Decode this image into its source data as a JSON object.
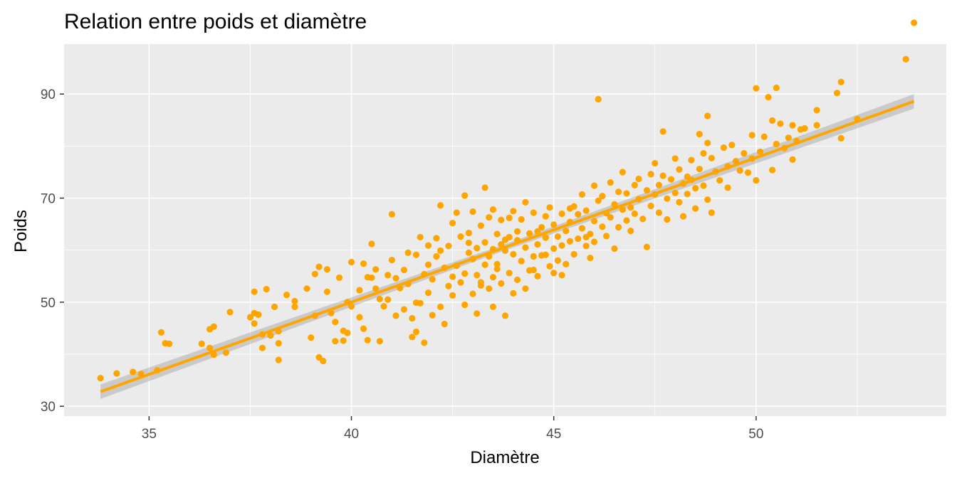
{
  "chart_data": {
    "type": "scatter",
    "title": "Relation entre poids et diamètre",
    "xlabel": "Diamètre",
    "ylabel": "Poids",
    "xlim": [
      32.9,
      54.7
    ],
    "ylim": [
      28.1,
      99.6
    ],
    "x_ticks": [
      "35",
      "40",
      "45",
      "50"
    ],
    "y_ticks": [
      "30",
      "50",
      "70",
      "90"
    ],
    "grid": true,
    "point_color": "#FFA500",
    "panel_color": "#EBEBEB",
    "smooth": {
      "method": "lm",
      "x": [
        33.8,
        53.9
      ],
      "y": [
        32.8,
        88.6
      ],
      "se_width": 1.0
    },
    "points": [
      [
        33.8,
        35.4
      ],
      [
        34.2,
        36.3
      ],
      [
        34.6,
        36.6
      ],
      [
        34.8,
        36.2
      ],
      [
        35.2,
        36.9
      ],
      [
        35.3,
        44.2
      ],
      [
        35.4,
        42.1
      ],
      [
        35.5,
        42.0
      ],
      [
        36.3,
        42.0
      ],
      [
        36.5,
        41.2
      ],
      [
        36.5,
        44.8
      ],
      [
        36.6,
        45.3
      ],
      [
        36.6,
        39.9
      ],
      [
        36.9,
        40.3
      ],
      [
        37.0,
        48.1
      ],
      [
        37.5,
        47.1
      ],
      [
        37.6,
        47.9
      ],
      [
        37.6,
        52.0
      ],
      [
        37.7,
        47.6
      ],
      [
        37.6,
        45.9
      ],
      [
        37.8,
        43.8
      ],
      [
        37.8,
        41.2
      ],
      [
        37.9,
        52.5
      ],
      [
        38.0,
        43.6
      ],
      [
        38.1,
        49.1
      ],
      [
        38.2,
        44.4
      ],
      [
        38.2,
        38.9
      ],
      [
        38.2,
        42.1
      ],
      [
        38.4,
        51.4
      ],
      [
        38.6,
        49.1
      ],
      [
        38.6,
        50.2
      ],
      [
        38.9,
        52.6
      ],
      [
        39.0,
        43.2
      ],
      [
        39.1,
        55.4
      ],
      [
        39.1,
        47.4
      ],
      [
        39.2,
        39.4
      ],
      [
        39.3,
        38.7
      ],
      [
        39.2,
        56.8
      ],
      [
        39.4,
        52.0
      ],
      [
        39.5,
        47.9
      ],
      [
        39.4,
        56.3
      ],
      [
        39.6,
        42.5
      ],
      [
        39.6,
        46.2
      ],
      [
        39.7,
        54.7
      ],
      [
        39.8,
        42.6
      ],
      [
        39.8,
        44.5
      ],
      [
        39.9,
        44.1
      ],
      [
        40.0,
        57.7
      ],
      [
        40.0,
        49.2
      ],
      [
        40.2,
        52.3
      ],
      [
        40.2,
        47.1
      ],
      [
        40.3,
        57.4
      ],
      [
        40.3,
        44.9
      ],
      [
        40.4,
        54.8
      ],
      [
        40.5,
        54.7
      ],
      [
        40.5,
        61.2
      ],
      [
        40.6,
        52.6
      ],
      [
        40.6,
        56.3
      ],
      [
        40.7,
        42.5
      ],
      [
        40.8,
        49.2
      ],
      [
        40.9,
        55.2
      ],
      [
        40.9,
        50.5
      ],
      [
        41.0,
        58.1
      ],
      [
        41.0,
        66.9
      ],
      [
        41.1,
        47.4
      ],
      [
        41.1,
        54.6
      ],
      [
        41.2,
        52.7
      ],
      [
        41.3,
        48.6
      ],
      [
        41.3,
        56.2
      ],
      [
        41.4,
        59.5
      ],
      [
        41.4,
        53.5
      ],
      [
        41.5,
        46.9
      ],
      [
        41.5,
        43.3
      ],
      [
        41.6,
        49.9
      ],
      [
        41.6,
        59.1
      ],
      [
        41.7,
        62.5
      ],
      [
        41.7,
        49.8
      ],
      [
        41.8,
        42.2
      ],
      [
        41.8,
        55.4
      ],
      [
        41.9,
        51.8
      ],
      [
        41.9,
        60.9
      ],
      [
        42.0,
        54.4
      ],
      [
        42.0,
        47.5
      ],
      [
        42.1,
        58.8
      ],
      [
        42.1,
        62.3
      ],
      [
        42.2,
        49.1
      ],
      [
        42.2,
        59.9
      ],
      [
        42.3,
        56.6
      ],
      [
        42.3,
        45.8
      ],
      [
        42.4,
        53.1
      ],
      [
        42.4,
        60.8
      ],
      [
        42.5,
        65.2
      ],
      [
        42.5,
        51.3
      ],
      [
        42.6,
        57.0
      ],
      [
        42.6,
        67.2
      ],
      [
        42.7,
        53.8
      ],
      [
        42.7,
        62.6
      ],
      [
        42.8,
        49.5
      ],
      [
        42.8,
        55.5
      ],
      [
        42.8,
        70.5
      ],
      [
        42.9,
        59.5
      ],
      [
        42.9,
        63.3
      ],
      [
        43.0,
        51.6
      ],
      [
        43.0,
        58.3
      ],
      [
        43.0,
        67.4
      ],
      [
        43.1,
        55.2
      ],
      [
        43.1,
        60.4
      ],
      [
        43.1,
        47.8
      ],
      [
        43.2,
        53.2
      ],
      [
        43.2,
        64.7
      ],
      [
        43.3,
        57.2
      ],
      [
        43.3,
        61.5
      ],
      [
        43.3,
        72.0
      ],
      [
        43.4,
        52.6
      ],
      [
        43.4,
        58.8
      ],
      [
        43.4,
        66.3
      ],
      [
        43.5,
        54.8
      ],
      [
        43.5,
        60.2
      ],
      [
        43.5,
        49.1
      ],
      [
        43.6,
        63.1
      ],
      [
        43.6,
        57.3
      ],
      [
        43.6,
        56.4
      ],
      [
        43.7,
        61.1
      ],
      [
        43.7,
        65.8
      ],
      [
        43.7,
        53.6
      ],
      [
        43.8,
        59.9
      ],
      [
        43.8,
        47.4
      ],
      [
        43.9,
        62.5
      ],
      [
        43.9,
        55.6
      ],
      [
        44.0,
        59.2
      ],
      [
        44.0,
        67.5
      ],
      [
        44.1,
        54.3
      ],
      [
        44.1,
        63.6
      ],
      [
        44.1,
        61.9
      ],
      [
        44.2,
        57.9
      ],
      [
        44.2,
        65.9
      ],
      [
        44.3,
        52.6
      ],
      [
        44.3,
        60.5
      ],
      [
        44.3,
        69.2
      ],
      [
        44.4,
        56.1
      ],
      [
        44.4,
        63.2
      ],
      [
        44.5,
        58.8
      ],
      [
        44.5,
        67.2
      ],
      [
        44.6,
        55.0
      ],
      [
        44.6,
        61.1
      ],
      [
        44.7,
        64.4
      ],
      [
        44.7,
        59.0
      ],
      [
        44.8,
        66.5
      ],
      [
        44.8,
        62.4
      ],
      [
        44.9,
        56.9
      ],
      [
        44.9,
        68.2
      ],
      [
        45.0,
        60.3
      ],
      [
        45.0,
        64.9
      ],
      [
        45.0,
        55.6
      ],
      [
        45.1,
        62.6
      ],
      [
        45.1,
        58.0
      ],
      [
        45.2,
        67.0
      ],
      [
        45.2,
        60.9
      ],
      [
        45.3,
        63.7
      ],
      [
        45.3,
        57.3
      ],
      [
        45.4,
        65.4
      ],
      [
        45.4,
        61.7
      ],
      [
        45.5,
        68.4
      ],
      [
        45.5,
        59.2
      ],
      [
        45.6,
        66.9
      ],
      [
        45.6,
        62.2
      ],
      [
        45.7,
        64.2
      ],
      [
        45.7,
        70.7
      ],
      [
        45.8,
        60.8
      ],
      [
        45.8,
        67.6
      ],
      [
        45.9,
        63.1
      ],
      [
        45.9,
        58.5
      ],
      [
        46.0,
        72.4
      ],
      [
        46.0,
        65.6
      ],
      [
        46.0,
        61.6
      ],
      [
        46.1,
        69.5
      ],
      [
        46.1,
        89.0
      ],
      [
        46.2,
        64.5
      ],
      [
        46.2,
        70.4
      ],
      [
        46.3,
        67.1
      ],
      [
        46.3,
        62.7
      ],
      [
        46.4,
        73.0
      ],
      [
        46.4,
        66.3
      ],
      [
        46.5,
        68.8
      ],
      [
        46.5,
        60.3
      ],
      [
        46.6,
        71.2
      ],
      [
        46.6,
        64.4
      ],
      [
        46.7,
        67.8
      ],
      [
        46.7,
        75.0
      ],
      [
        46.8,
        65.7
      ],
      [
        46.8,
        70.9
      ],
      [
        46.9,
        68.2
      ],
      [
        46.9,
        63.7
      ],
      [
        47.0,
        72.5
      ],
      [
        47.0,
        67.0
      ],
      [
        47.1,
        69.8
      ],
      [
        47.1,
        73.7
      ],
      [
        47.2,
        66.0
      ],
      [
        47.3,
        71.5
      ],
      [
        47.3,
        60.6
      ],
      [
        47.4,
        74.6
      ],
      [
        47.4,
        68.5
      ],
      [
        47.5,
        70.7
      ],
      [
        47.5,
        76.7
      ],
      [
        47.6,
        67.2
      ],
      [
        47.6,
        72.5
      ],
      [
        47.7,
        74.3
      ],
      [
        47.7,
        82.8
      ],
      [
        47.8,
        69.9
      ],
      [
        47.8,
        65.9
      ],
      [
        47.9,
        73.6
      ],
      [
        48.0,
        71.0
      ],
      [
        48.0,
        77.6
      ],
      [
        48.1,
        69.2
      ],
      [
        48.1,
        75.5
      ],
      [
        48.2,
        72.8
      ],
      [
        48.2,
        66.5
      ],
      [
        48.3,
        74.1
      ],
      [
        48.3,
        70.8
      ],
      [
        48.4,
        77.3
      ],
      [
        48.4,
        73.5
      ],
      [
        48.5,
        71.9
      ],
      [
        48.5,
        68.0
      ],
      [
        48.6,
        82.3
      ],
      [
        48.6,
        75.6
      ],
      [
        48.7,
        72.4
      ],
      [
        48.7,
        78.6
      ],
      [
        48.8,
        69.7
      ],
      [
        48.8,
        80.6
      ],
      [
        48.8,
        85.8
      ],
      [
        48.9,
        77.7
      ],
      [
        48.9,
        67.2
      ],
      [
        49.0,
        75.1
      ],
      [
        49.1,
        73.4
      ],
      [
        49.2,
        79.7
      ],
      [
        49.3,
        76.1
      ],
      [
        49.3,
        72.0
      ],
      [
        49.4,
        80.2
      ],
      [
        49.5,
        77.1
      ],
      [
        49.6,
        75.3
      ],
      [
        49.7,
        78.6
      ],
      [
        49.8,
        74.9
      ],
      [
        49.9,
        82.1
      ],
      [
        49.9,
        77.6
      ],
      [
        50.0,
        91.1
      ],
      [
        50.0,
        73.4
      ],
      [
        50.1,
        78.9
      ],
      [
        50.2,
        81.8
      ],
      [
        50.3,
        89.4
      ],
      [
        50.4,
        75.4
      ],
      [
        50.4,
        84.9
      ],
      [
        50.5,
        80.4
      ],
      [
        50.5,
        91.2
      ],
      [
        50.6,
        84.3
      ],
      [
        50.7,
        79.6
      ],
      [
        50.8,
        81.6
      ],
      [
        50.9,
        84.0
      ],
      [
        50.9,
        77.4
      ],
      [
        51.0,
        81.0
      ],
      [
        51.1,
        83.2
      ],
      [
        51.2,
        83.4
      ],
      [
        51.5,
        84.0
      ],
      [
        51.5,
        86.9
      ],
      [
        52.0,
        90.2
      ],
      [
        52.1,
        92.3
      ],
      [
        52.1,
        81.5
      ],
      [
        52.5,
        85.2
      ],
      [
        53.7,
        96.7
      ],
      [
        53.9,
        103.7
      ],
      [
        43.5,
        67.8
      ],
      [
        42.2,
        68.6
      ],
      [
        43.9,
        66.2
      ],
      [
        44.8,
        59.1
      ],
      [
        45.2,
        55.2
      ],
      [
        44.0,
        51.7
      ],
      [
        41.6,
        44.3
      ],
      [
        40.4,
        42.7
      ],
      [
        39.9,
        50.0
      ],
      [
        40.7,
        50.6
      ],
      [
        42.5,
        54.9
      ],
      [
        43.2,
        53.8
      ],
      [
        44.5,
        56.2
      ],
      [
        45.8,
        62.5
      ],
      [
        41.9,
        57.2
      ],
      [
        42.9,
        61.4
      ],
      [
        43.8,
        62.0
      ],
      [
        44.6,
        63.6
      ],
      [
        45.4,
        68.0
      ]
    ]
  }
}
